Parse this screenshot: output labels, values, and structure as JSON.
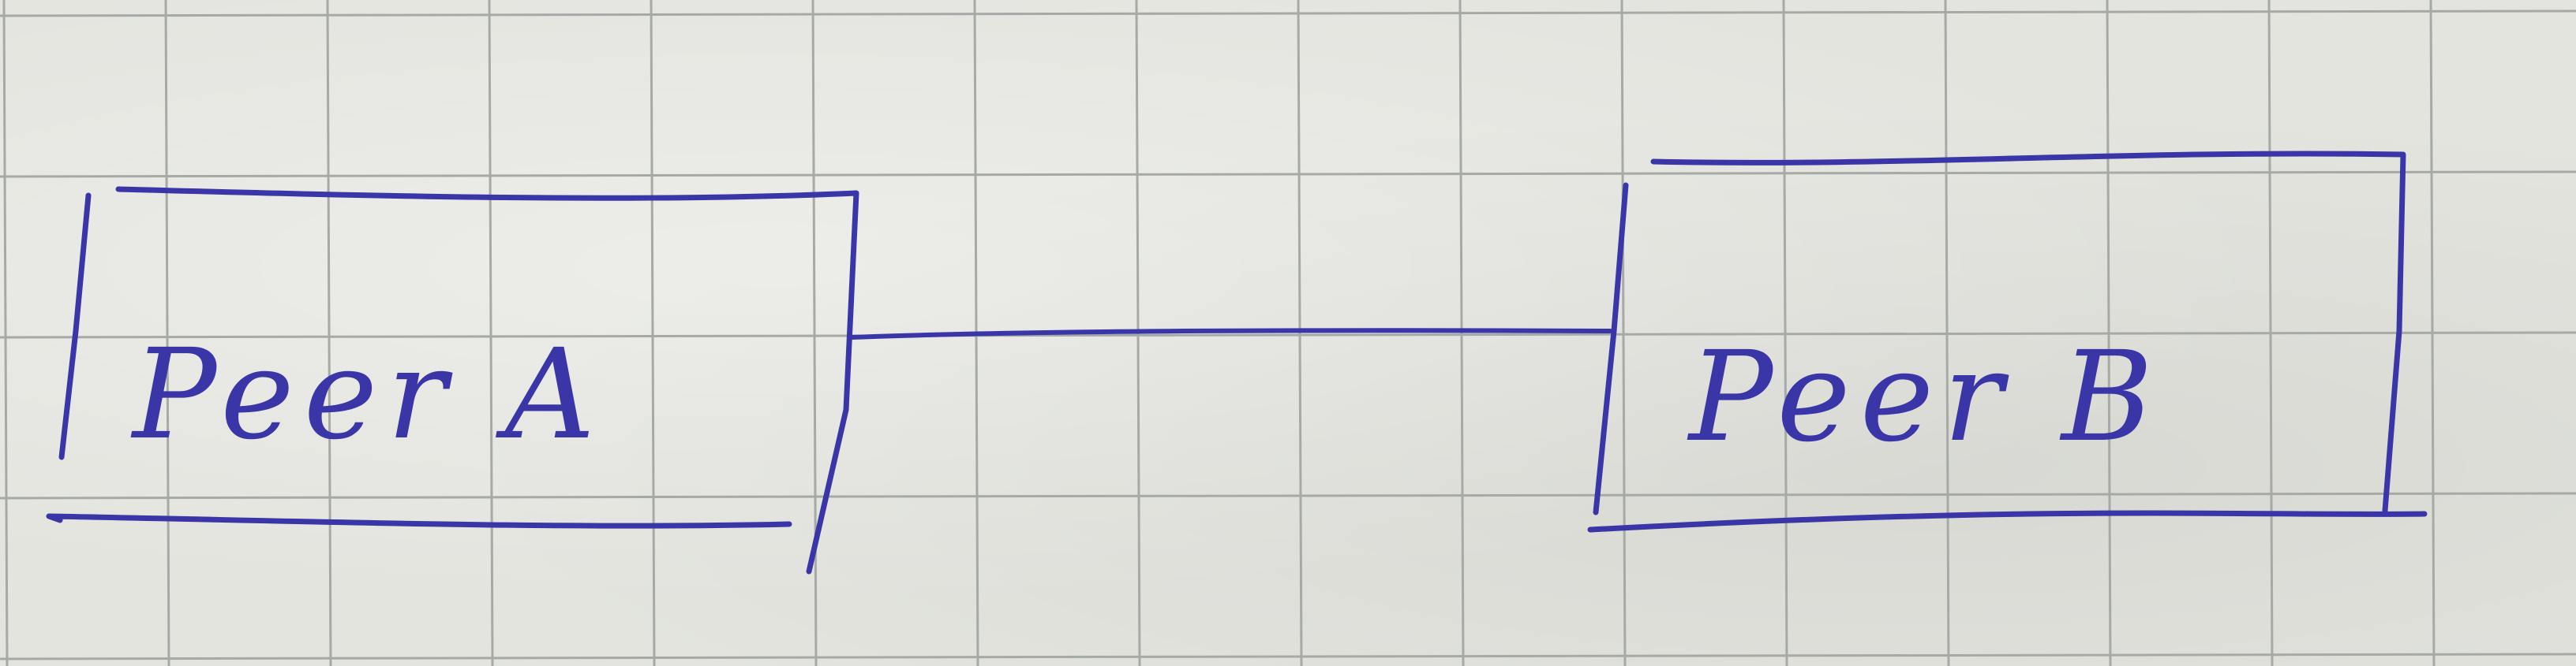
{
  "diagram": {
    "nodes": [
      {
        "id": "peer-a",
        "label": "Peer A"
      },
      {
        "id": "peer-b",
        "label": "Peer B"
      }
    ],
    "edges": [
      {
        "from": "peer-a",
        "to": "peer-b"
      }
    ]
  },
  "colors": {
    "ink": "#3a36a8",
    "paper": "#e3e4de",
    "grid": "#a6aaa6"
  }
}
